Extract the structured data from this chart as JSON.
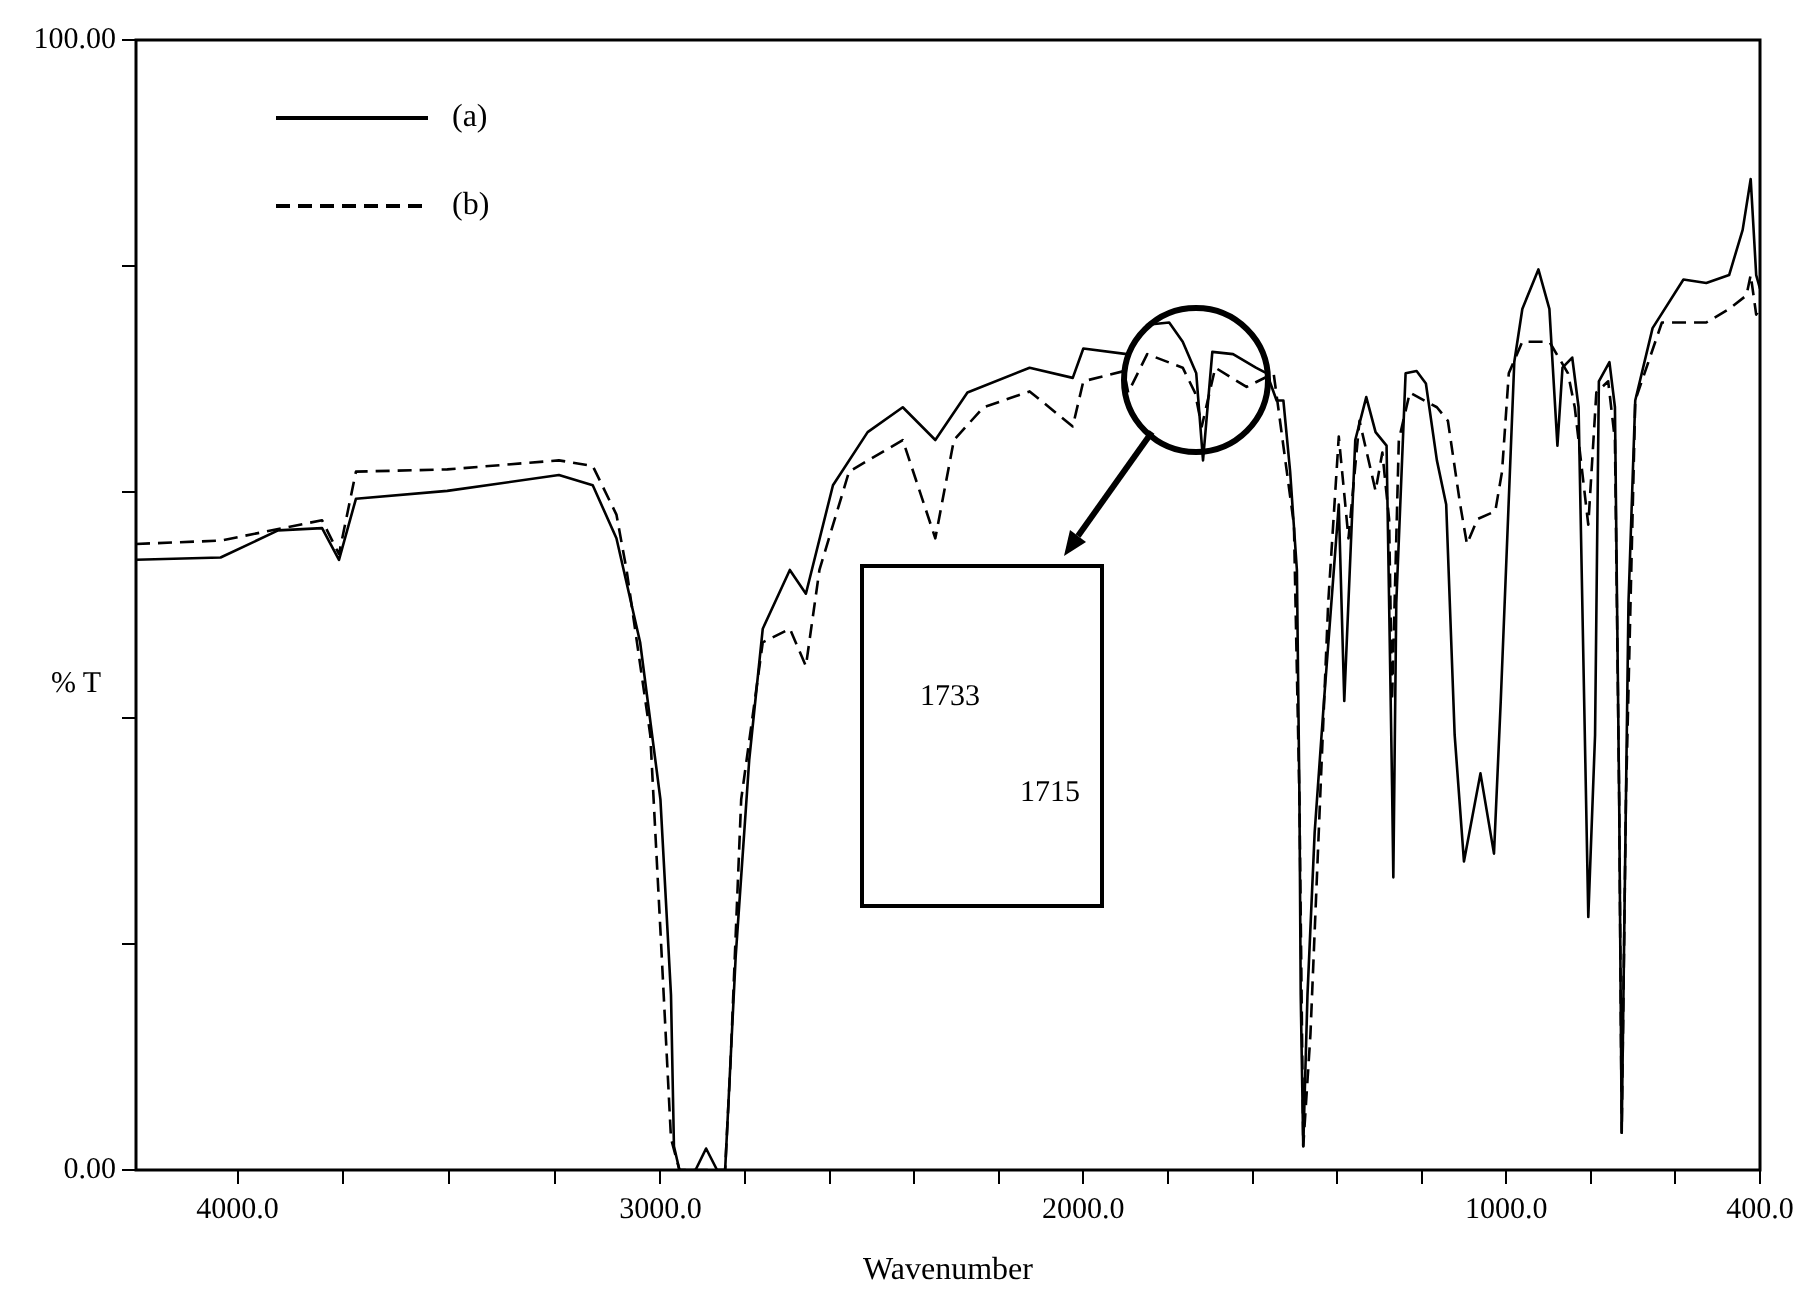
{
  "chart_data": {
    "type": "line",
    "xlabel": "Wavenumber",
    "ylabel": "% T",
    "xlim": [
      4240,
      400
    ],
    "ylim": [
      0,
      100
    ],
    "xticks": [
      {
        "value": 4000,
        "label": "4000.0"
      },
      {
        "value": 3750,
        "label": null
      },
      {
        "value": 3500,
        "label": null
      },
      {
        "value": 3250,
        "label": null
      },
      {
        "value": 3000,
        "label": "3000.0"
      },
      {
        "value": 2800,
        "label": null
      },
      {
        "value": 2600,
        "label": null
      },
      {
        "value": 2400,
        "label": null
      },
      {
        "value": 2200,
        "label": null
      },
      {
        "value": 2000,
        "label": "2000.0"
      },
      {
        "value": 1800,
        "label": null
      },
      {
        "value": 1600,
        "label": null
      },
      {
        "value": 1400,
        "label": null
      },
      {
        "value": 1200,
        "label": null
      },
      {
        "value": 1000,
        "label": "1000.0"
      },
      {
        "value": 800,
        "label": null
      },
      {
        "value": 600,
        "label": null
      },
      {
        "value": 400,
        "label": "400.0"
      }
    ],
    "yticks": [
      {
        "value": 0,
        "label": "0.00"
      },
      {
        "value": 20,
        "label": null
      },
      {
        "value": 40,
        "label": null
      },
      {
        "value": 60,
        "label": null
      },
      {
        "value": 80,
        "label": null
      },
      {
        "value": 100,
        "label": "100.00"
      }
    ],
    "legend": "top left",
    "annotations": [
      "1733",
      "1715"
    ],
    "series": [
      {
        "name": "(a)",
        "color": "#000000",
        "line_style": "solid",
        "x": [
          4240,
          4040,
          3904,
          3800,
          3760,
          3720,
          3504,
          3240,
          3160,
          3104,
          3048,
          3000,
          2975,
          2968,
          2955,
          2917,
          2892,
          2866,
          2847,
          2822,
          2790,
          2758,
          2694,
          2656,
          2592,
          2510,
          2427,
          2350,
          2274,
          2127,
          2025,
          2000,
          1897,
          1849,
          1797,
          1765,
          1733,
          1717,
          1695,
          1646,
          1592,
          1566,
          1543,
          1527,
          1511,
          1495,
          1489,
          1486,
          1480,
          1470,
          1453,
          1431,
          1396,
          1383,
          1357,
          1331,
          1309,
          1283,
          1270,
          1267,
          1260,
          1238,
          1212,
          1190,
          1164,
          1142,
          1122,
          1100,
          1061,
          1029,
          1013,
          981,
          962,
          924,
          898,
          879,
          867,
          844,
          829,
          806,
          790,
          781,
          756,
          743,
          733,
          727,
          717,
          711,
          695,
          654,
          581,
          527,
          473,
          441,
          422,
          409,
          400
        ],
        "values": [
          54.0,
          54.2,
          56.6,
          56.8,
          54.0,
          59.4,
          60.1,
          61.5,
          60.6,
          55.9,
          46.7,
          32.8,
          15.5,
          2.1,
          0,
          0,
          1.9,
          0,
          0,
          18.9,
          36.3,
          47.9,
          53.1,
          51.0,
          60.6,
          65.3,
          67.5,
          64.6,
          68.8,
          71.0,
          70.1,
          72.7,
          72.2,
          74.8,
          75.0,
          73.3,
          70.5,
          62.8,
          72.4,
          72.2,
          71.0,
          70.5,
          68.1,
          68.1,
          61.8,
          53.1,
          32.8,
          15.5,
          2.1,
          15.5,
          29.9,
          41.5,
          58.9,
          41.5,
          64.6,
          68.4,
          65.3,
          64.1,
          34.0,
          25.9,
          50.2,
          70.5,
          70.7,
          69.6,
          62.8,
          58.9,
          38.5,
          27.3,
          35.1,
          28.0,
          41.5,
          71.5,
          76.2,
          79.7,
          76.2,
          64.1,
          71.0,
          71.9,
          67.5,
          22.4,
          38.5,
          69.8,
          71.5,
          67.5,
          32.8,
          3.3,
          32.8,
          50.2,
          68.1,
          74.5,
          78.8,
          78.5,
          79.2,
          83.2,
          87.7,
          79.2,
          78.0
        ]
      },
      {
        "name": "(b)",
        "color": "#000000",
        "line_style": "dashed",
        "x": [
          4240,
          4040,
          3800,
          3760,
          3720,
          3504,
          3240,
          3160,
          3104,
          3080,
          3024,
          3000,
          2975,
          2955,
          2847,
          2834,
          2809,
          2758,
          2694,
          2656,
          2624,
          2554,
          2427,
          2350,
          2306,
          2236,
          2127,
          2025,
          2000,
          1904,
          1894,
          1849,
          1765,
          1736,
          1720,
          1688,
          1614,
          1550,
          1502,
          1489,
          1480,
          1463,
          1444,
          1421,
          1396,
          1373,
          1347,
          1309,
          1293,
          1277,
          1270,
          1254,
          1228,
          1164,
          1138,
          1109,
          1093,
          1068,
          1026,
          1010,
          994,
          962,
          898,
          854,
          838,
          806,
          787,
          759,
          743,
          733,
          727,
          717,
          695,
          632,
          527,
          473,
          432,
          422,
          409,
          400
        ],
        "values": [
          55.4,
          55.7,
          57.5,
          54.5,
          61.8,
          62.0,
          62.8,
          62.3,
          58.0,
          53.1,
          38.5,
          21.2,
          2.8,
          0,
          0,
          9.7,
          32.8,
          46.7,
          47.9,
          44.6,
          53.1,
          61.8,
          64.6,
          55.9,
          64.6,
          67.5,
          68.9,
          65.8,
          69.8,
          70.7,
          68.8,
          72.2,
          71.0,
          68.8,
          65.8,
          71.0,
          69.3,
          70.5,
          57.1,
          32.8,
          2.1,
          12.0,
          29.3,
          50.2,
          64.9,
          55.9,
          66.3,
          60.1,
          63.5,
          57.6,
          41.5,
          64.6,
          68.8,
          67.5,
          66.3,
          58.9,
          55.4,
          57.6,
          58.3,
          61.8,
          70.5,
          73.3,
          73.3,
          70.5,
          67.5,
          57.1,
          68.8,
          69.8,
          64.6,
          32.8,
          3.3,
          32.8,
          68.1,
          75.0,
          75.0,
          76.2,
          77.4,
          79.2,
          75.7,
          76.2
        ]
      }
    ]
  }
}
